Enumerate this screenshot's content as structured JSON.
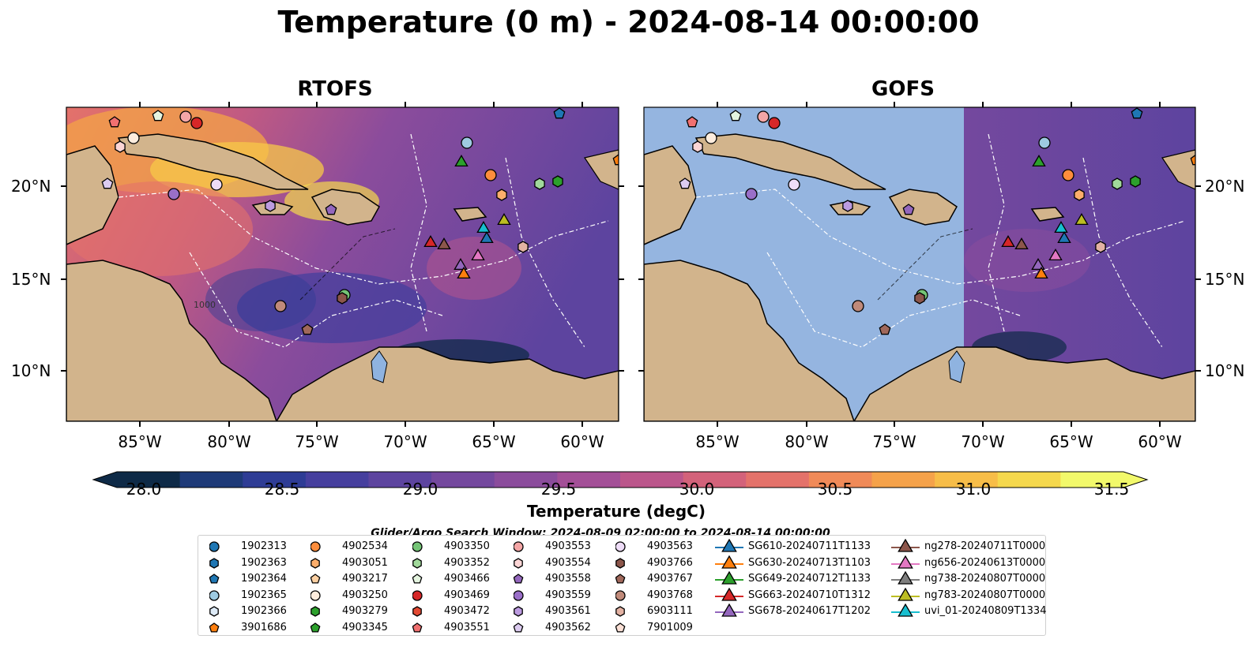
{
  "title": "Temperature (0 m) - 2024-08-14 00:00:00",
  "panels": [
    {
      "title": "RTOFS"
    },
    {
      "title": "GOFS"
    }
  ],
  "axes": {
    "lat_labels": [
      "20°N",
      "15°N",
      "10°N"
    ],
    "lon_labels": [
      "85°W",
      "80°W",
      "75°W",
      "70°W",
      "65°W",
      "60°W"
    ],
    "contour_label": "1000"
  },
  "colorbar": {
    "label": "Temperature (degC)",
    "ticks": [
      "28.0",
      "28.5",
      "29.0",
      "29.5",
      "30.0",
      "30.5",
      "31.0",
      "31.5"
    ],
    "colors": [
      "#0e2a47",
      "#1e3a78",
      "#2e3c95",
      "#463f9e",
      "#5d449f",
      "#74489e",
      "#8b4c9c",
      "#a34f97",
      "#bb568b",
      "#d3627a",
      "#e4726a",
      "#f08a58",
      "#f5a24a",
      "#f7bd48",
      "#f5d84d",
      "#f2f96b"
    ]
  },
  "search_window": "Glider/Argo Search Window: 2024-08-09 02:00:00 to 2024-08-14 00:00:00",
  "legend": {
    "columns": [
      [
        {
          "label": "1902313",
          "marker": "circle",
          "color": "#1f77b4"
        },
        {
          "label": "1902363",
          "marker": "hexagon",
          "color": "#1f77b4"
        },
        {
          "label": "1902364",
          "marker": "pentagon",
          "color": "#1f77b4"
        },
        {
          "label": "1902365",
          "marker": "circle",
          "color": "#9ecae1"
        },
        {
          "label": "1902366",
          "marker": "hexagon",
          "color": "#deebf7"
        },
        {
          "label": "3901686",
          "marker": "pentagon",
          "color": "#ff7f0e"
        }
      ],
      [
        {
          "label": "4902534",
          "marker": "circle",
          "color": "#fd8d3c"
        },
        {
          "label": "4903051",
          "marker": "hexagon",
          "color": "#fdae6b"
        },
        {
          "label": "4903217",
          "marker": "pentagon",
          "color": "#fdd0a2"
        },
        {
          "label": "4903250",
          "marker": "circle",
          "color": "#feedde"
        },
        {
          "label": "4903279",
          "marker": "hexagon",
          "color": "#2ca02c"
        },
        {
          "label": "4903345",
          "marker": "pentagon",
          "color": "#2ca02c"
        }
      ],
      [
        {
          "label": "4903350",
          "marker": "circle",
          "color": "#74c476"
        },
        {
          "label": "4903352",
          "marker": "hexagon",
          "color": "#a1d99b"
        },
        {
          "label": "4903466",
          "marker": "pentagon",
          "color": "#e5f5e0"
        },
        {
          "label": "4903469",
          "marker": "circle",
          "color": "#d62728"
        },
        {
          "label": "4903472",
          "marker": "hexagon",
          "color": "#e34a33"
        },
        {
          "label": "4903551",
          "marker": "pentagon",
          "color": "#f07070"
        }
      ],
      [
        {
          "label": "4903553",
          "marker": "circle",
          "color": "#f4a6a6"
        },
        {
          "label": "4903554",
          "marker": "hexagon",
          "color": "#fcd5d5"
        },
        {
          "label": "4903558",
          "marker": "pentagon",
          "color": "#9467bd"
        },
        {
          "label": "4903559",
          "marker": "circle",
          "color": "#9a6fc8"
        },
        {
          "label": "4903561",
          "marker": "hexagon",
          "color": "#bc9be0"
        },
        {
          "label": "4903562",
          "marker": "pentagon",
          "color": "#dccbf0"
        }
      ],
      [
        {
          "label": "4903563",
          "marker": "circle",
          "color": "#eedcf7"
        },
        {
          "label": "4903766",
          "marker": "hexagon",
          "color": "#8c564b"
        },
        {
          "label": "4903767",
          "marker": "pentagon",
          "color": "#a0685b"
        },
        {
          "label": "4903768",
          "marker": "circle",
          "color": "#c08a7a"
        },
        {
          "label": "6903111",
          "marker": "hexagon",
          "color": "#e3b2a3"
        },
        {
          "label": "7901009",
          "marker": "pentagon",
          "color": "#fbe0d6"
        }
      ],
      [
        {
          "label": "SG610-20240711T1133",
          "marker": "triangle",
          "color": "#1f77b4"
        },
        {
          "label": "SG630-20240713T1103",
          "marker": "triangle",
          "color": "#ff7f0e"
        },
        {
          "label": "SG649-20240712T1133",
          "marker": "triangle",
          "color": "#2ca02c"
        },
        {
          "label": "SG663-20240710T1312",
          "marker": "triangle",
          "color": "#d62728"
        },
        {
          "label": "SG678-20240617T1202",
          "marker": "triangle",
          "color": "#9467bd"
        }
      ],
      [
        {
          "label": "ng278-20240711T0000",
          "marker": "triangle",
          "color": "#8c564b"
        },
        {
          "label": "ng656-20240613T0000",
          "marker": "triangle",
          "color": "#e377c2"
        },
        {
          "label": "ng738-20240807T0000",
          "marker": "triangle",
          "color": "#7f7f7f"
        },
        {
          "label": "ng783-20240807T0000",
          "marker": "triangle",
          "color": "#bcbd22"
        },
        {
          "label": "uvi_01-20240809T1334",
          "marker": "triangle",
          "color": "#17becf"
        }
      ]
    ]
  }
}
